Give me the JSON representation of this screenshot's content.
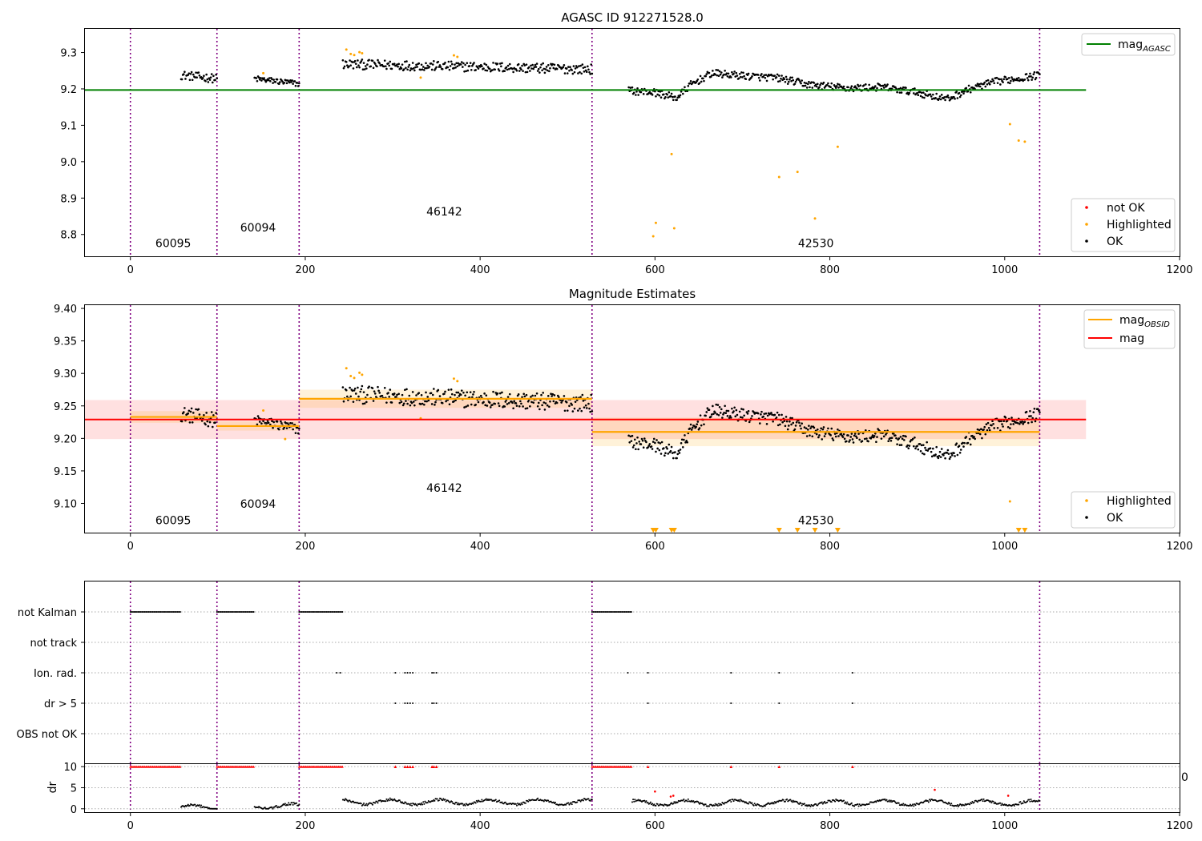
{
  "chart_data": [
    {
      "type": "scatter",
      "title": "AGASC ID 912271528.0",
      "xlim": [
        -52,
        1200
      ],
      "ylim": [
        8.74,
        9.365
      ],
      "xticks": [
        "0",
        "200",
        "400",
        "600",
        "800",
        "1000",
        "1200"
      ],
      "yticks": [
        "8.8",
        "8.9",
        "9.0",
        "9.1",
        "9.2",
        "9.3"
      ],
      "grid": false,
      "legend_placement": [
        "upper-right",
        "lower-right"
      ],
      "reference_lines": [
        {
          "name": "mag_AGASC",
          "label_main": "mag",
          "label_sub": "AGASC",
          "y": 9.197,
          "x": [
            -52,
            1093
          ],
          "color": "#008000"
        }
      ],
      "obsid_boundaries": [
        0,
        99,
        193,
        528,
        1040
      ],
      "obsid_labels": [
        {
          "text": "60095",
          "x": 49,
          "y": 8.765
        },
        {
          "text": "60094",
          "x": 146,
          "y": 8.808
        },
        {
          "text": "46142",
          "x": 359,
          "y": 8.852
        },
        {
          "text": "42530",
          "x": 784,
          "y": 8.765
        }
      ],
      "legend_points": [
        {
          "label": "not OK",
          "color": "#ff0000"
        },
        {
          "label": "Highlighted",
          "color": "#ffa500"
        },
        {
          "label": "OK",
          "color": "#000000"
        }
      ],
      "series": [
        {
          "name": "OK",
          "color": "#000000",
          "segments": [
            {
              "x": [
                58,
                99
              ],
              "base": [
                9.238,
                9.228
              ],
              "noise": 0.007
            },
            {
              "x": [
                142,
                193
              ],
              "base": [
                9.228,
                9.214
              ],
              "noise": 0.005
            },
            {
              "x": [
                243,
                528
              ],
              "base": [
                9.268,
                9.254
              ],
              "noise": 0.008
            },
            {
              "x": [
                570,
                1040
              ],
              "curve": [
                [
                  570,
                  9.195
                ],
                [
                  600,
                  9.19
                ],
                [
                  625,
                  9.175
                ],
                [
                  640,
                  9.21
                ],
                [
                  665,
                  9.243
                ],
                [
                  700,
                  9.236
                ],
                [
                  740,
                  9.23
                ],
                [
                  775,
                  9.212
                ],
                [
                  820,
                  9.202
                ],
                [
                  860,
                  9.205
                ],
                [
                  900,
                  9.19
                ],
                [
                  935,
                  9.172
                ],
                [
                  960,
                  9.2
                ],
                [
                  990,
                  9.22
                ],
                [
                  1040,
                  9.238
                ]
              ],
              "noise": 0.006
            }
          ]
        },
        {
          "name": "Highlighted",
          "color": "#ffa500",
          "points": [
            [
              247,
              9.308
            ],
            [
              252,
              9.296
            ],
            [
              256,
              9.293
            ],
            [
              262,
              9.301
            ],
            [
              265,
              9.298
            ],
            [
              332,
              9.231
            ],
            [
              370,
              9.292
            ],
            [
              374,
              9.288
            ],
            [
              152,
              9.243
            ],
            [
              598,
              8.795
            ],
            [
              601,
              8.832
            ],
            [
              619,
              9.021
            ],
            [
              622,
              8.817
            ],
            [
              742,
              8.958
            ],
            [
              763,
              8.972
            ],
            [
              783,
              8.844
            ],
            [
              809,
              9.041
            ],
            [
              1006,
              9.103
            ],
            [
              1016,
              9.058
            ],
            [
              1023,
              9.055
            ]
          ]
        },
        {
          "name": "not OK",
          "color": "#ff0000",
          "points": []
        }
      ]
    },
    {
      "type": "scatter",
      "title": "Magnitude Estimates",
      "xlim": [
        -52,
        1200
      ],
      "ylim": [
        9.055,
        9.405
      ],
      "xticks": [
        "0",
        "200",
        "400",
        "600",
        "800",
        "1000",
        "1200"
      ],
      "yticks": [
        "9.10",
        "9.15",
        "9.20",
        "9.25",
        "9.30",
        "9.35",
        "9.40"
      ],
      "grid": false,
      "legend_placement": [
        "upper-right",
        "lower-right"
      ],
      "reference_lines": [
        {
          "name": "mag",
          "label_main": "mag",
          "y": 9.229,
          "x": [
            -52,
            1093
          ],
          "band": [
            9.199,
            9.259
          ],
          "color": "#ff0000"
        }
      ],
      "obsid_mag_lines": [
        {
          "label_main": "mag",
          "label_sub": "OBSID",
          "color": "#ffa500",
          "segments": [
            {
              "x": [
                0,
                99
              ],
              "y": 9.233,
              "band": [
                9.224,
                9.242
              ]
            },
            {
              "x": [
                99,
                193
              ],
              "y": 9.219,
              "band": [
                9.212,
                9.226
              ]
            },
            {
              "x": [
                193,
                528
              ],
              "y": 9.261,
              "band": [
                9.247,
                9.275
              ]
            },
            {
              "x": [
                528,
                1040
              ],
              "y": 9.21,
              "band": [
                9.188,
                9.232
              ]
            }
          ]
        }
      ],
      "obsid_boundaries": [
        0,
        99,
        193,
        528,
        1040
      ],
      "obsid_labels": [
        {
          "text": "60095",
          "x": 49,
          "y": 9.068
        },
        {
          "text": "60094",
          "x": 146,
          "y": 9.093
        },
        {
          "text": "46142",
          "x": 359,
          "y": 9.118
        },
        {
          "text": "42530",
          "x": 784,
          "y": 9.068
        }
      ],
      "legend_points": [
        {
          "label": "Highlighted",
          "color": "#ffa500"
        },
        {
          "label": "OK",
          "color": "#000000"
        }
      ],
      "out_of_range_markers": {
        "color": "#ffa500",
        "x": [
          598,
          601,
          619,
          622,
          742,
          763,
          783,
          809,
          1016,
          1023
        ]
      },
      "series": [
        {
          "name": "OK",
          "color": "#000000",
          "segments": [
            {
              "x": [
                58,
                99
              ],
              "base": [
                9.238,
                9.228
              ],
              "noise": 0.007
            },
            {
              "x": [
                142,
                193
              ],
              "base": [
                9.228,
                9.214
              ],
              "noise": 0.005
            },
            {
              "x": [
                243,
                528
              ],
              "base": [
                9.268,
                9.254
              ],
              "noise": 0.008
            },
            {
              "x": [
                570,
                1040
              ],
              "curve": [
                [
                  570,
                  9.195
                ],
                [
                  600,
                  9.19
                ],
                [
                  625,
                  9.175
                ],
                [
                  640,
                  9.21
                ],
                [
                  665,
                  9.243
                ],
                [
                  700,
                  9.236
                ],
                [
                  740,
                  9.23
                ],
                [
                  775,
                  9.212
                ],
                [
                  820,
                  9.202
                ],
                [
                  860,
                  9.205
                ],
                [
                  900,
                  9.19
                ],
                [
                  935,
                  9.172
                ],
                [
                  960,
                  9.2
                ],
                [
                  990,
                  9.22
                ],
                [
                  1040,
                  9.238
                ]
              ],
              "noise": 0.006
            }
          ]
        },
        {
          "name": "Highlighted",
          "color": "#ffa500",
          "points": [
            [
              247,
              9.308
            ],
            [
              252,
              9.296
            ],
            [
              256,
              9.293
            ],
            [
              262,
              9.301
            ],
            [
              265,
              9.298
            ],
            [
              332,
              9.231
            ],
            [
              370,
              9.292
            ],
            [
              374,
              9.288
            ],
            [
              152,
              9.243
            ],
            [
              177,
              9.199
            ],
            [
              1006,
              9.103
            ]
          ]
        }
      ]
    },
    {
      "type": "scatter",
      "title": "",
      "xlim": [
        -52,
        1200
      ],
      "xticks": [
        "0",
        "200",
        "400",
        "600",
        "800",
        "1000",
        "1200"
      ],
      "flag_rows": [
        "not Kalman",
        "not track",
        "Ion. rad.",
        "dr > 5",
        "OBS not OK"
      ],
      "flags": {
        "not Kalman": [
          [
            0,
            58
          ],
          [
            99,
            142
          ],
          [
            193,
            243
          ],
          [
            528,
            574
          ]
        ],
        "not track": [],
        "Ion. rad.": [
          236,
          240,
          303,
          314,
          317,
          320,
          323,
          345,
          347,
          350,
          569,
          592,
          687,
          742,
          826
        ],
        "dr > 5": [
          303,
          314,
          317,
          320,
          323,
          345,
          347,
          350,
          592,
          687,
          742,
          826
        ],
        "OBS not OK": []
      },
      "obsid_boundaries": [
        0,
        99,
        193,
        528,
        1040
      ],
      "dr_panel": {
        "ylabel": "dr",
        "yticks": [
          "0",
          "5",
          "10"
        ],
        "ylim": [
          -0.8,
          10.6
        ],
        "clipped_value": 10,
        "clipped_color": "#ff0000",
        "clipped_runs": [
          [
            0,
            58
          ],
          [
            99,
            142
          ],
          [
            193,
            243
          ],
          [
            528,
            574
          ]
        ],
        "clipped_points": [
          303,
          314,
          317,
          320,
          323,
          345,
          347,
          350,
          592,
          687,
          742,
          826
        ],
        "outliers": [
          [
            600,
            4.1
          ],
          [
            618,
            2.9
          ],
          [
            621,
            3.1
          ],
          [
            920,
            4.5
          ],
          [
            1004,
            3.1
          ]
        ],
        "dr_segments": [
          [
            58,
            99,
            0.3
          ],
          [
            142,
            193,
            0.6
          ],
          [
            243,
            528,
            1.6
          ],
          [
            574,
            1040,
            1.4
          ]
        ],
        "stray_tick_label": "0"
      }
    }
  ]
}
